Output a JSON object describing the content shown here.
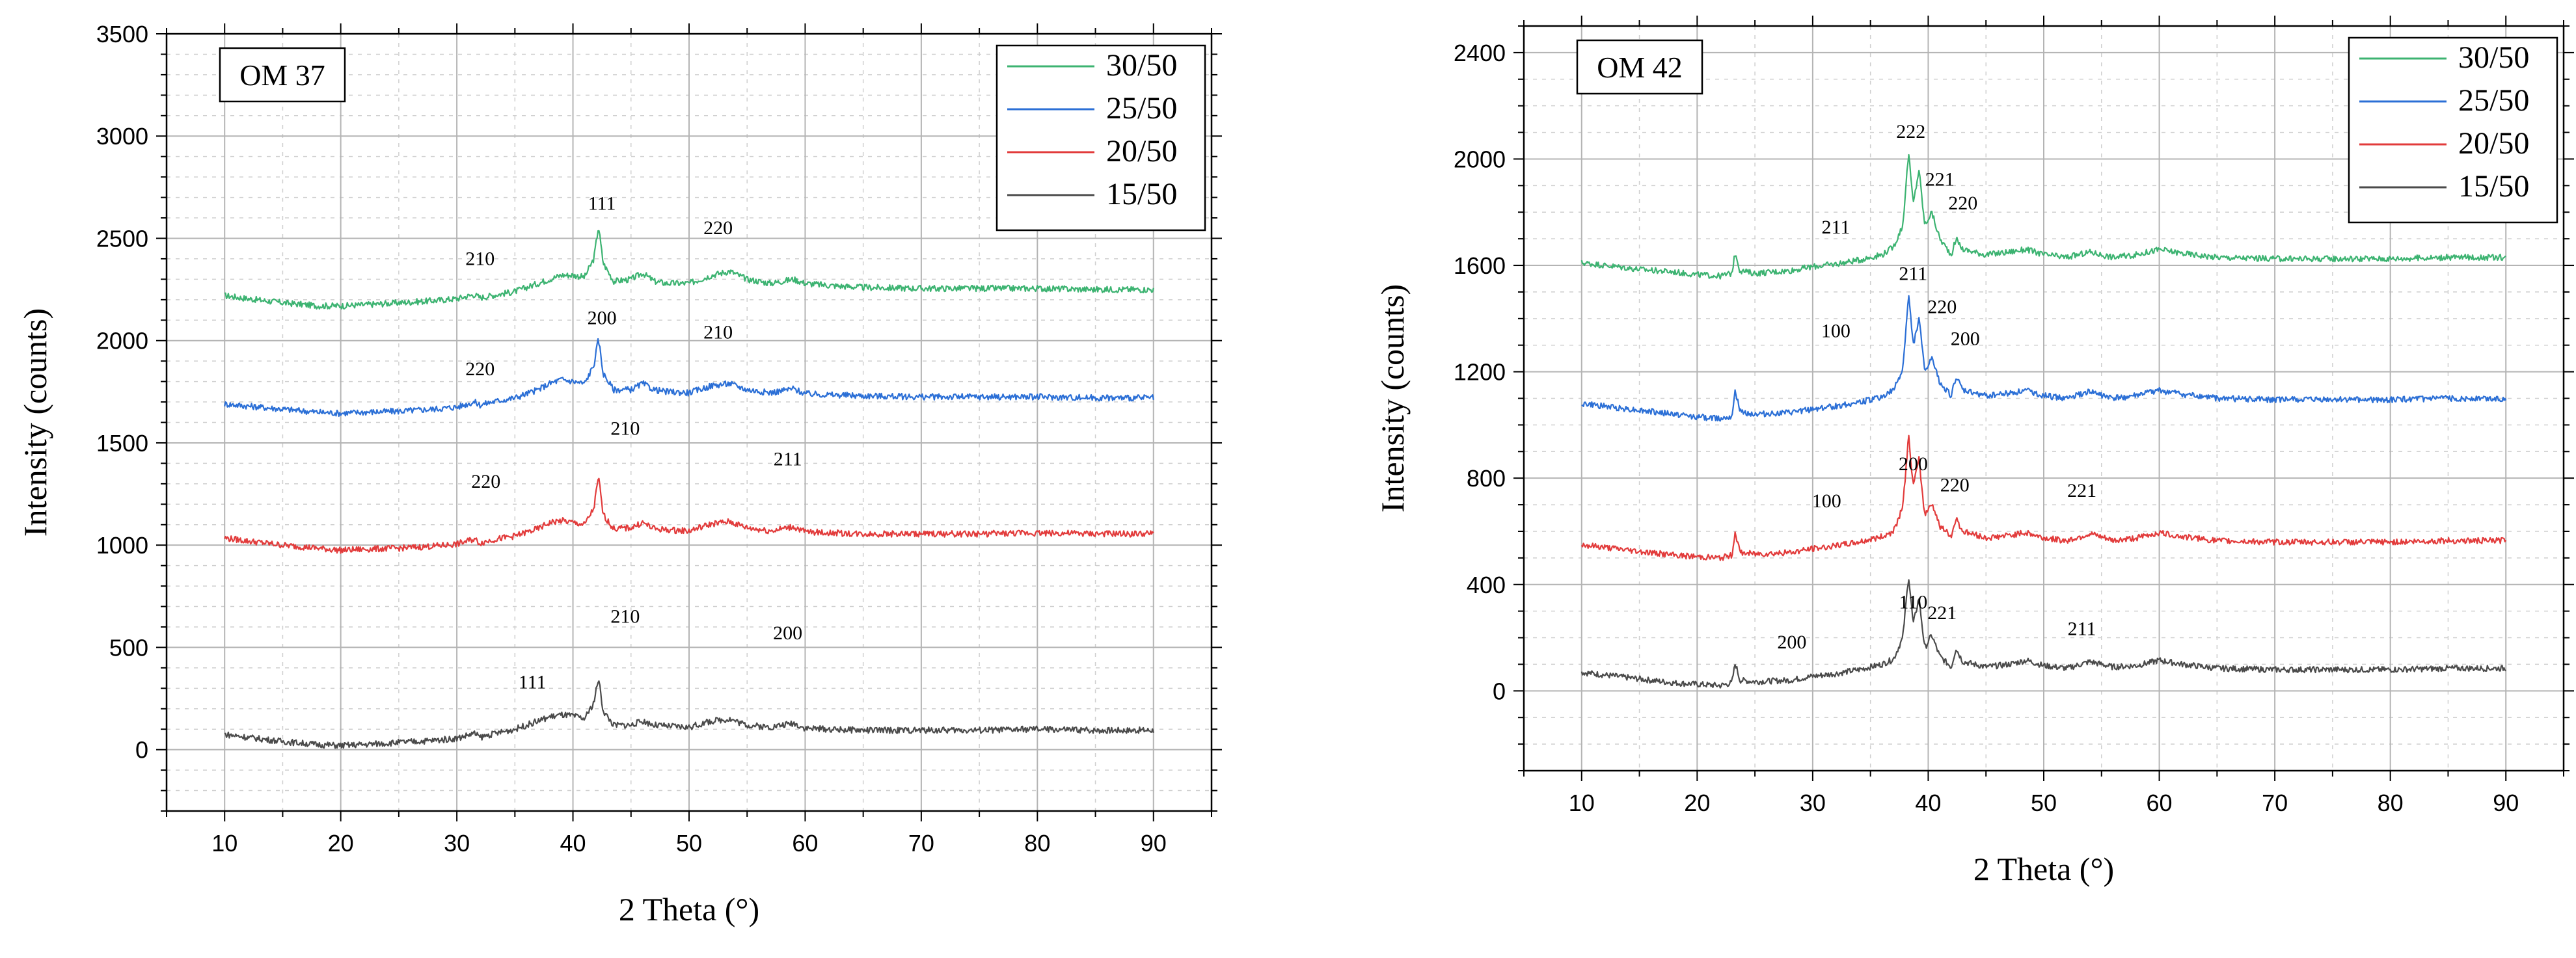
{
  "chart_data": [
    {
      "type": "line",
      "title": "OM 37",
      "xlabel": "2 Theta (°)",
      "ylabel": "Intensity (counts)",
      "xlim": [
        5,
        95
      ],
      "ylim": [
        -300,
        3500
      ],
      "xticks": [
        10,
        20,
        30,
        40,
        50,
        60,
        70,
        80,
        90
      ],
      "yticks": [
        0,
        500,
        1000,
        1500,
        2000,
        2500,
        3000,
        3500
      ],
      "grid": true,
      "legend_position": "top-right",
      "series": [
        {
          "name": "30/50",
          "color": "#3cb371",
          "x": [
            10,
            12,
            15,
            18,
            20,
            22,
            25,
            28,
            30,
            31.5,
            32,
            33,
            35,
            37,
            38,
            39,
            40,
            41,
            41.8,
            42.2,
            42.6,
            43.5,
            45,
            46,
            47,
            48,
            50,
            52,
            53.5,
            55,
            57,
            59,
            60,
            62,
            65,
            70,
            75,
            80,
            85,
            90
          ],
          "y": [
            2220,
            2205,
            2185,
            2170,
            2170,
            2175,
            2185,
            2195,
            2205,
            2225,
            2210,
            2220,
            2240,
            2280,
            2300,
            2320,
            2320,
            2310,
            2400,
            2560,
            2380,
            2290,
            2300,
            2330,
            2290,
            2280,
            2280,
            2320,
            2340,
            2300,
            2280,
            2300,
            2280,
            2270,
            2260,
            2255,
            2255,
            2255,
            2250,
            2250
          ]
        },
        {
          "name": "25/50",
          "color": "#2b6fd6",
          "x": [
            10,
            12,
            15,
            18,
            20,
            22,
            25,
            28,
            30,
            31.5,
            32,
            33,
            35,
            37,
            38,
            39,
            40,
            41,
            41.8,
            42.2,
            42.6,
            43.5,
            45,
            46,
            47,
            48,
            50,
            52,
            53.5,
            55,
            57,
            59,
            60,
            62,
            65,
            70,
            75,
            80,
            85,
            90
          ],
          "y": [
            1690,
            1680,
            1665,
            1650,
            1645,
            1650,
            1655,
            1665,
            1675,
            1700,
            1685,
            1700,
            1720,
            1760,
            1790,
            1810,
            1800,
            1790,
            1880,
            2010,
            1840,
            1760,
            1760,
            1790,
            1760,
            1750,
            1745,
            1780,
            1790,
            1760,
            1745,
            1765,
            1740,
            1735,
            1730,
            1725,
            1725,
            1725,
            1720,
            1720
          ]
        },
        {
          "name": "20/50",
          "color": "#e23b3b",
          "x": [
            10,
            12,
            15,
            18,
            20,
            22,
            25,
            28,
            30,
            31.5,
            32,
            33,
            35,
            37,
            38,
            39,
            40,
            41,
            41.8,
            42.2,
            42.6,
            43.5,
            45,
            46,
            47,
            48,
            50,
            52,
            53.5,
            55,
            57,
            59,
            60,
            62,
            65,
            70,
            75,
            80,
            85,
            90
          ],
          "y": [
            1035,
            1020,
            1000,
            985,
            975,
            980,
            985,
            995,
            1005,
            1030,
            1010,
            1025,
            1045,
            1080,
            1110,
            1120,
            1110,
            1100,
            1180,
            1335,
            1150,
            1080,
            1085,
            1110,
            1080,
            1075,
            1070,
            1105,
            1115,
            1085,
            1070,
            1090,
            1065,
            1060,
            1055,
            1055,
            1055,
            1060,
            1055,
            1055
          ]
        },
        {
          "name": "15/50",
          "color": "#4a4a4a",
          "x": [
            10,
            12,
            15,
            18,
            20,
            22,
            25,
            28,
            30,
            31.5,
            32,
            33,
            35,
            37,
            38,
            39,
            40,
            41,
            41.8,
            42.2,
            42.6,
            43.5,
            45,
            46,
            47,
            48,
            50,
            52,
            53.5,
            55,
            57,
            59,
            60,
            62,
            65,
            70,
            75,
            80,
            85,
            90
          ],
          "y": [
            75,
            60,
            40,
            25,
            20,
            25,
            35,
            45,
            55,
            80,
            60,
            75,
            100,
            140,
            160,
            170,
            165,
            150,
            230,
            350,
            190,
            120,
            120,
            140,
            120,
            115,
            110,
            140,
            150,
            120,
            110,
            130,
            105,
            100,
            95,
            95,
            95,
            100,
            95,
            95
          ]
        }
      ],
      "annotations": [
        {
          "text": "210",
          "x": 32,
          "y": 2370
        },
        {
          "text": "111",
          "x": 42.5,
          "y": 2640
        },
        {
          "text": "220",
          "x": 52.5,
          "y": 2520
        },
        {
          "text": "220",
          "x": 32,
          "y": 1830
        },
        {
          "text": "200",
          "x": 42.5,
          "y": 2080
        },
        {
          "text": "210",
          "x": 52.5,
          "y": 2010
        },
        {
          "text": "210",
          "x": 44.5,
          "y": 1540
        },
        {
          "text": "220",
          "x": 32.5,
          "y": 1280
        },
        {
          "text": "211",
          "x": 58.5,
          "y": 1390
        },
        {
          "text": "210",
          "x": 44.5,
          "y": 620
        },
        {
          "text": "200",
          "x": 58.5,
          "y": 540
        },
        {
          "text": "111",
          "x": 36.5,
          "y": 300
        }
      ]
    },
    {
      "type": "line",
      "title": "OM 42",
      "xlabel": "2 Theta (°)",
      "ylabel": "Intensity (counts)",
      "xlim": [
        5,
        95
      ],
      "ylim": [
        -300,
        2500
      ],
      "xticks": [
        10,
        20,
        30,
        40,
        50,
        60,
        70,
        80,
        90
      ],
      "yticks": [
        0,
        400,
        800,
        1200,
        1600,
        2000,
        2400
      ],
      "grid": true,
      "legend_position": "top-right",
      "series": [
        {
          "name": "30/50",
          "color": "#3cb371",
          "x": [
            10,
            12,
            15,
            18,
            20,
            22,
            23,
            23.3,
            23.7,
            25,
            28,
            30,
            32,
            34,
            36,
            37,
            37.8,
            38.3,
            38.7,
            39.2,
            39.7,
            40.3,
            41,
            42,
            42.4,
            43,
            45,
            47,
            48.5,
            50,
            52,
            54,
            56,
            58,
            60,
            62,
            65,
            70,
            75,
            80,
            85,
            90
          ],
          "y": [
            1610,
            1600,
            1585,
            1575,
            1565,
            1560,
            1570,
            1650,
            1580,
            1570,
            1580,
            1595,
            1605,
            1620,
            1640,
            1670,
            1750,
            2025,
            1830,
            1960,
            1750,
            1800,
            1700,
            1640,
            1700,
            1660,
            1640,
            1650,
            1660,
            1640,
            1630,
            1650,
            1630,
            1640,
            1660,
            1645,
            1630,
            1625,
            1625,
            1625,
            1630,
            1630
          ]
        },
        {
          "name": "25/50",
          "color": "#2b6fd6",
          "x": [
            10,
            12,
            15,
            18,
            20,
            22,
            23,
            23.3,
            23.7,
            25,
            28,
            30,
            32,
            34,
            36,
            37,
            37.8,
            38.3,
            38.7,
            39.2,
            39.7,
            40.3,
            41,
            42,
            42.4,
            43,
            45,
            47,
            48.5,
            50,
            52,
            54,
            56,
            58,
            60,
            62,
            65,
            70,
            75,
            80,
            85,
            90
          ],
          "y": [
            1080,
            1070,
            1055,
            1040,
            1030,
            1025,
            1035,
            1130,
            1050,
            1040,
            1045,
            1060,
            1070,
            1085,
            1105,
            1130,
            1210,
            1490,
            1300,
            1400,
            1200,
            1250,
            1160,
            1110,
            1180,
            1130,
            1110,
            1120,
            1130,
            1110,
            1100,
            1125,
            1100,
            1110,
            1130,
            1115,
            1100,
            1095,
            1095,
            1095,
            1100,
            1100
          ]
        },
        {
          "name": "20/50",
          "color": "#e23b3b",
          "x": [
            10,
            12,
            15,
            18,
            20,
            22,
            23,
            23.3,
            23.7,
            25,
            28,
            30,
            32,
            34,
            36,
            37,
            37.8,
            38.3,
            38.7,
            39.2,
            39.7,
            40.3,
            41,
            42,
            42.4,
            43,
            45,
            47,
            48.5,
            50,
            52,
            54,
            56,
            58,
            60,
            62,
            65,
            70,
            75,
            80,
            85,
            90
          ],
          "y": [
            550,
            540,
            525,
            510,
            505,
            500,
            510,
            600,
            520,
            515,
            520,
            535,
            545,
            560,
            580,
            600,
            690,
            960,
            770,
            870,
            660,
            710,
            620,
            580,
            650,
            600,
            575,
            585,
            595,
            575,
            565,
            590,
            565,
            575,
            595,
            580,
            565,
            560,
            560,
            560,
            565,
            565
          ]
        },
        {
          "name": "15/50",
          "color": "#4a4a4a",
          "x": [
            10,
            12,
            15,
            18,
            20,
            22,
            23,
            23.3,
            23.7,
            25,
            28,
            30,
            32,
            34,
            36,
            37,
            37.8,
            38.3,
            38.7,
            39.2,
            39.7,
            40.3,
            41,
            42,
            42.4,
            43,
            45,
            47,
            48.5,
            50,
            52,
            54,
            56,
            58,
            60,
            62,
            65,
            70,
            75,
            80,
            85,
            90
          ],
          "y": [
            70,
            60,
            45,
            30,
            25,
            20,
            30,
            105,
            40,
            35,
            40,
            55,
            65,
            80,
            100,
            120,
            200,
            435,
            250,
            350,
            160,
            210,
            130,
            90,
            160,
            110,
            90,
            100,
            115,
            95,
            85,
            110,
            90,
            95,
            115,
            100,
            85,
            80,
            80,
            80,
            85,
            85
          ]
        }
      ],
      "annotations": [
        {
          "text": "222",
          "x": 38.5,
          "y": 2080
        },
        {
          "text": "221",
          "x": 41,
          "y": 1900
        },
        {
          "text": "220",
          "x": 43,
          "y": 1810
        },
        {
          "text": "211",
          "x": 32,
          "y": 1720
        },
        {
          "text": "211",
          "x": 38.7,
          "y": 1545
        },
        {
          "text": "220",
          "x": 41.2,
          "y": 1420
        },
        {
          "text": "200",
          "x": 43.2,
          "y": 1300
        },
        {
          "text": "100",
          "x": 32,
          "y": 1330
        },
        {
          "text": "200",
          "x": 38.7,
          "y": 830
        },
        {
          "text": "220",
          "x": 42.3,
          "y": 750
        },
        {
          "text": "221",
          "x": 53.3,
          "y": 730
        },
        {
          "text": "100",
          "x": 31.2,
          "y": 690
        },
        {
          "text": "110",
          "x": 38.7,
          "y": 310
        },
        {
          "text": "221",
          "x": 41.2,
          "y": 270
        },
        {
          "text": "211",
          "x": 53.3,
          "y": 210
        },
        {
          "text": "200",
          "x": 28.2,
          "y": 160
        }
      ]
    }
  ]
}
